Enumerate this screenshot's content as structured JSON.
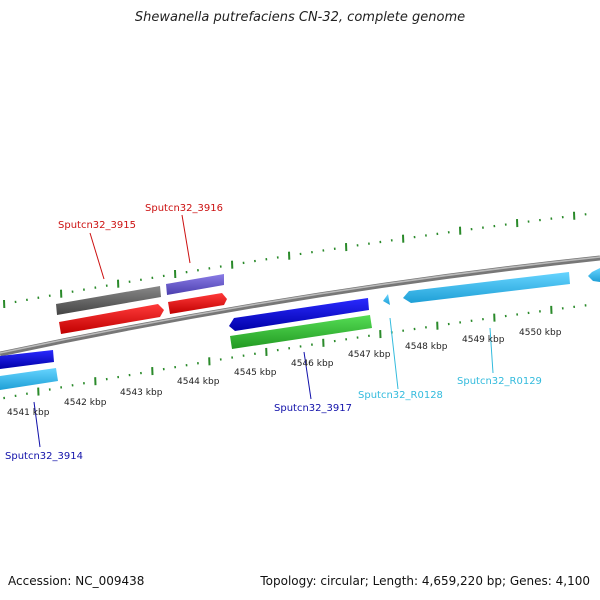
{
  "title": "Shewanella putrefaciens CN-32, complete genome",
  "footer": {
    "accession": "Accession: NC_009438",
    "summary": "Topology: circular; Length: 4,659,220 bp; Genes: 4,100"
  },
  "colors": {
    "grey": "#666666",
    "purple": "#6f5ed4",
    "red": "#ee1111",
    "blue": "#1515dd",
    "green": "#33bb33",
    "cyan": "#33bbee",
    "tick": "#2a8a2a",
    "backbone": "#8a8a8a"
  },
  "scale_labels": [
    "4541 kbp",
    "4542 kbp",
    "4543 kbp",
    "4544 kbp",
    "4545 kbp",
    "4546 kbp",
    "4547 kbp",
    "4548 kbp",
    "4549 kbp",
    "4550 kbp"
  ],
  "gene_labels": [
    {
      "name": "Sputcn32_3915",
      "color": "#cc1111"
    },
    {
      "name": "Sputcn32_3916",
      "color": "#cc1111"
    },
    {
      "name": "Sputcn32_3917",
      "color": "#1111aa"
    },
    {
      "name": "Sputcn32_R0128",
      "color": "#33bbdd"
    },
    {
      "name": "Sputcn32_R0129",
      "color": "#33bbdd"
    },
    {
      "name": "Sputcn32_3914",
      "color": "#1111aa"
    }
  ]
}
